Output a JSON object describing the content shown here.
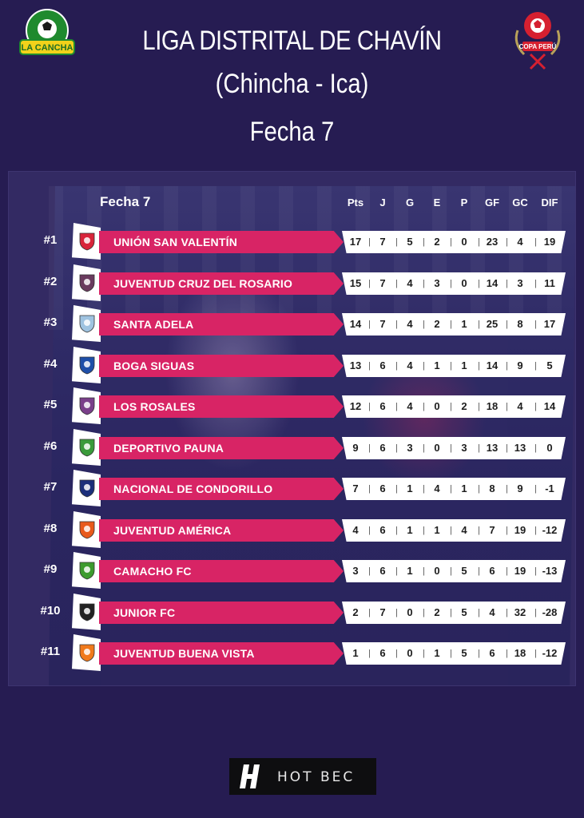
{
  "header": {
    "title_line1": "LIGA DISTRITAL DE CHAVÍN",
    "title_line2": "(Chincha - Ica)",
    "title_line3": "Fecha 7",
    "left_logo_icon": "la-cancha-logo-icon",
    "right_logo_icon": "copa-peru-logo-icon"
  },
  "table": {
    "round_label": "Fecha 7",
    "columns": [
      "Pts",
      "J",
      "G",
      "E",
      "P",
      "GF",
      "GC",
      "DIF"
    ],
    "colors": {
      "name_bar": "#d82465",
      "stats_bar": "#ffffff",
      "background": "#261c52"
    },
    "rows": [
      {
        "rank": "#1",
        "team": "UNIÓN SAN VALENTÍN",
        "crest_color": "#d8243a",
        "stats": [
          "17",
          "7",
          "5",
          "2",
          "0",
          "23",
          "4",
          "19"
        ]
      },
      {
        "rank": "#2",
        "team": "JUVENTUD CRUZ DEL ROSARIO",
        "crest_color": "#6a3b5e",
        "stats": [
          "15",
          "7",
          "4",
          "3",
          "0",
          "14",
          "3",
          "11"
        ]
      },
      {
        "rank": "#3",
        "team": "SANTA ADELA",
        "crest_color": "#9fc3e0",
        "stats": [
          "14",
          "7",
          "4",
          "2",
          "1",
          "25",
          "8",
          "17"
        ]
      },
      {
        "rank": "#4",
        "team": "BOGA SIGUAS",
        "crest_color": "#1e4fa8",
        "stats": [
          "13",
          "6",
          "4",
          "1",
          "1",
          "14",
          "9",
          "5"
        ]
      },
      {
        "rank": "#5",
        "team": "LOS ROSALES",
        "crest_color": "#7a3f8a",
        "stats": [
          "12",
          "6",
          "4",
          "0",
          "2",
          "18",
          "4",
          "14"
        ]
      },
      {
        "rank": "#6",
        "team": "DEPORTIVO PAUNA",
        "crest_color": "#3a9a3a",
        "stats": [
          "9",
          "6",
          "3",
          "0",
          "3",
          "13",
          "13",
          "0"
        ]
      },
      {
        "rank": "#7",
        "team": "NACIONAL DE CONDORILLO",
        "crest_color": "#1c2f7a",
        "stats": [
          "7",
          "6",
          "1",
          "4",
          "1",
          "8",
          "9",
          "-1"
        ]
      },
      {
        "rank": "#8",
        "team": "JUVENTUD AMÉRICA",
        "crest_color": "#e85a1c",
        "stats": [
          "4",
          "6",
          "1",
          "1",
          "4",
          "7",
          "19",
          "-12"
        ]
      },
      {
        "rank": "#9",
        "team": "CAMACHO FC",
        "crest_color": "#3d9b2e",
        "stats": [
          "3",
          "6",
          "1",
          "0",
          "5",
          "6",
          "19",
          "-13"
        ]
      },
      {
        "rank": "#10",
        "team": "JUNIOR FC",
        "crest_color": "#222222",
        "stats": [
          "2",
          "7",
          "0",
          "2",
          "5",
          "4",
          "32",
          "-28"
        ]
      },
      {
        "rank": "#11",
        "team": "JUVENTUD BUENA VISTA",
        "crest_color": "#f07a1c",
        "stats": [
          "1",
          "6",
          "0",
          "1",
          "5",
          "6",
          "18",
          "-12"
        ]
      }
    ]
  },
  "footer": {
    "brand_text": "HOT BEC",
    "brand_icon": "hotbec-logo-icon"
  }
}
